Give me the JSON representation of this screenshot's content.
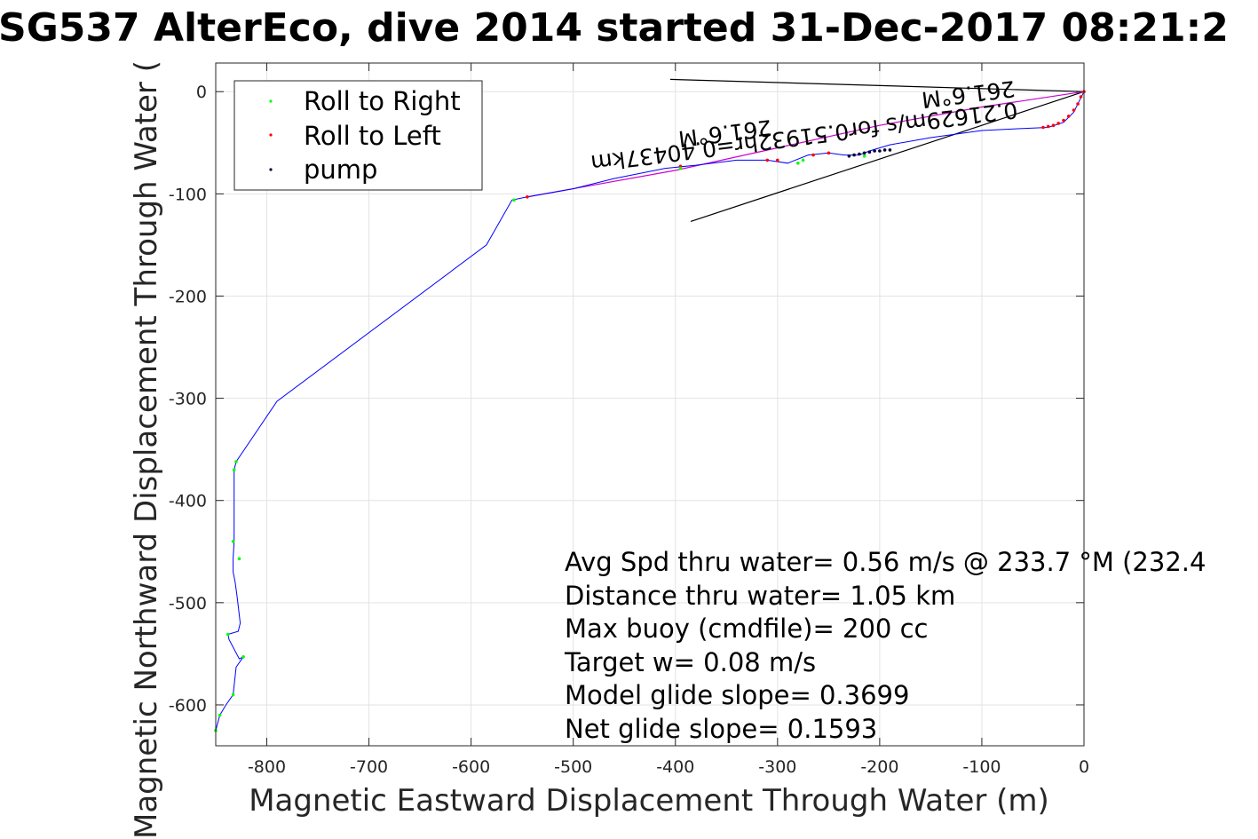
{
  "chart_data": {
    "type": "scatter",
    "title": "SG537 AlterEco, dive 2014 started 31-Dec-2017 08:21:2",
    "xlabel": "Magnetic Eastward Displacement Through Water (m)",
    "ylabel": "Magnetic Northward Displacement Through Water (",
    "xlim": [
      -850,
      0
    ],
    "ylim": [
      -640,
      28
    ],
    "xticks": [
      -800,
      -700,
      -600,
      -500,
      -400,
      -300,
      -200,
      -100,
      0
    ],
    "yticks": [
      0,
      -100,
      -200,
      -300,
      -400,
      -500,
      -600
    ],
    "xtick_labels": [
      "-800",
      "-700",
      "-600",
      "-500",
      "-400",
      "-300",
      "-200",
      "-100",
      "0"
    ],
    "ytick_labels": [
      "0",
      "-100",
      "-200",
      "-300",
      "-400",
      "-500",
      "-600"
    ],
    "grid": true,
    "legend_position": "top-left",
    "colors": {
      "track": "#0000ff",
      "roll_right": "#00ff00",
      "roll_left": "#ff0000",
      "pump": "#000033",
      "surface_track": "#cc00cc",
      "direction_line": "#000000"
    },
    "legend": [
      {
        "label": "Roll to Right",
        "color": "#00ff00"
      },
      {
        "label": "Roll to Left",
        "color": "#ff0000"
      },
      {
        "label": "pump",
        "color": "#000033"
      }
    ],
    "track": {
      "name": "track",
      "x": [
        0,
        -5,
        -10,
        -20,
        -35,
        -60,
        -100,
        -150,
        -190,
        -210,
        -220,
        -235,
        -250,
        -270,
        -290,
        -310,
        -340,
        -380,
        -410,
        -460,
        -500,
        -545,
        -560,
        -585,
        -790,
        -830,
        -832,
        -832,
        -833,
        -833,
        -831,
        -829,
        -826,
        -828,
        -838,
        -837,
        -827,
        -823,
        -830,
        -833,
        -840,
        -846,
        -850
      ],
      "y": [
        0,
        -10,
        -20,
        -30,
        -35,
        -36,
        -38,
        -45,
        -52,
        -58,
        -62,
        -62,
        -60,
        -62,
        -70,
        -67,
        -67,
        -72,
        -75,
        -85,
        -95,
        -103,
        -106,
        -150,
        -303,
        -362,
        -370,
        -440,
        -457,
        -470,
        -480,
        -495,
        -520,
        -528,
        -531,
        -536,
        -555,
        -553,
        -563,
        -590,
        -600,
        -610,
        -625
      ]
    },
    "roll_right": {
      "x": [
        -558,
        -830,
        -832,
        -833,
        -827,
        -838,
        -823,
        -833,
        -846,
        -850,
        -280,
        -275,
        -215,
        -395
      ],
      "y": [
        -106,
        -362,
        -370,
        -440,
        -457,
        -531,
        -553,
        -590,
        -610,
        -625,
        -70,
        -67,
        -63,
        -75
      ]
    },
    "roll_left": {
      "x": [
        0,
        -3,
        -6,
        -10,
        -15,
        -20,
        -25,
        -30,
        -35,
        -40,
        -545,
        -250,
        -265,
        -300,
        -310,
        -395
      ],
      "y": [
        0,
        -5,
        -12,
        -18,
        -24,
        -28,
        -31,
        -33,
        -34,
        -35,
        -103,
        -60,
        -62,
        -67,
        -67,
        -73
      ]
    },
    "pump": {
      "x": [
        -190,
        -195,
        -200,
        -205,
        -210,
        -215,
        -220,
        -225,
        -230
      ],
      "y": [
        -57,
        -57,
        -58,
        -58,
        -59,
        -60,
        -61,
        -62,
        -63
      ]
    },
    "surface_track": {
      "name": "surface",
      "x": [
        0,
        -100,
        -200,
        -300,
        -400,
        -545
      ],
      "y": [
        0,
        -15,
        -33,
        -55,
        -77,
        -103
      ]
    },
    "direction_lines": [
      {
        "x": [
          -405,
          0
        ],
        "y": [
          12,
          0
        ]
      },
      {
        "x": [
          -385,
          0
        ],
        "y": [
          -127,
          0
        ]
      }
    ],
    "rotated_annotations": [
      "0.21629m/s for0.51932hr=0.40437km",
      "261.6°M",
      "261.6°M"
    ],
    "stats": [
      "Avg Spd thru water=  0.56 m/s @ 233.7 °M (232.4",
      "Distance thru water=  1.05 km",
      "Max buoy (cmdfile)= 200 cc",
      "Target w= 0.08 m/s",
      "Model glide slope= 0.3699",
      "Net glide slope= 0.1593"
    ]
  }
}
